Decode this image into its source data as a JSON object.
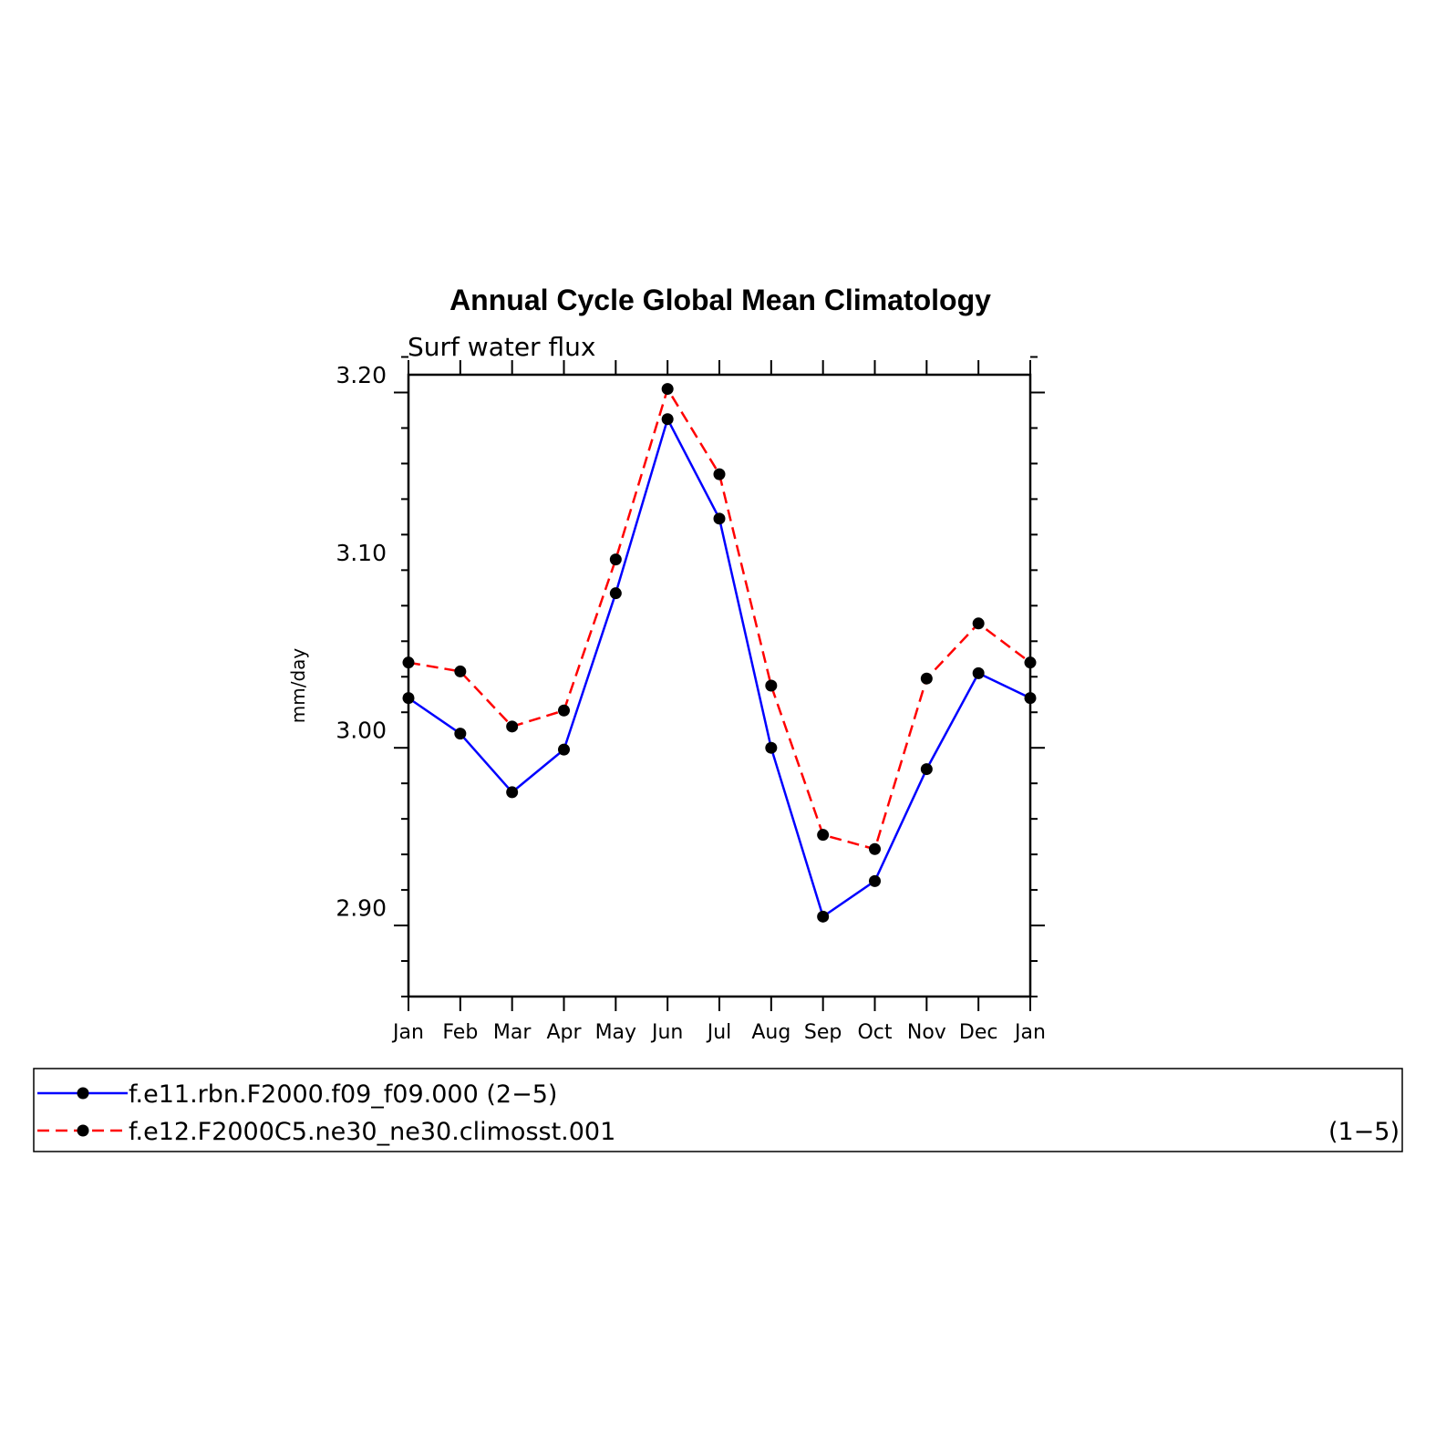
{
  "chart_data": {
    "type": "line",
    "title": "Annual Cycle Global Mean Climatology",
    "subtitle": "Surf water flux",
    "ylabel": "mm/day",
    "xlabel": "",
    "categories": [
      "Jan",
      "Feb",
      "Mar",
      "Apr",
      "May",
      "Jun",
      "Jul",
      "Aug",
      "Sep",
      "Oct",
      "Nov",
      "Dec",
      "Jan"
    ],
    "ylim": [
      2.85,
      3.2
    ],
    "yticks": [
      "2.90",
      "3.00",
      "3.10",
      "3.20"
    ],
    "grid": false,
    "legend_position": "bottom",
    "series": [
      {
        "name": "f.e11.rbn.F2000.f09_f09.000",
        "range": "(2−5)",
        "color": "#0000ff",
        "dash": "solid",
        "values": [
          3.018,
          2.998,
          2.965,
          2.989,
          3.077,
          3.175,
          3.119,
          2.99,
          2.895,
          2.915,
          2.978,
          3.032,
          3.018
        ]
      },
      {
        "name": "f.e12.F2000C5.ne30_ne30.climosst.001",
        "range": "(1−5)",
        "color": "#ff0000",
        "dash": "dashed",
        "values": [
          3.038,
          3.033,
          3.002,
          3.011,
          3.096,
          3.192,
          3.144,
          3.025,
          2.941,
          2.933,
          3.029,
          3.06,
          3.038
        ]
      }
    ]
  }
}
